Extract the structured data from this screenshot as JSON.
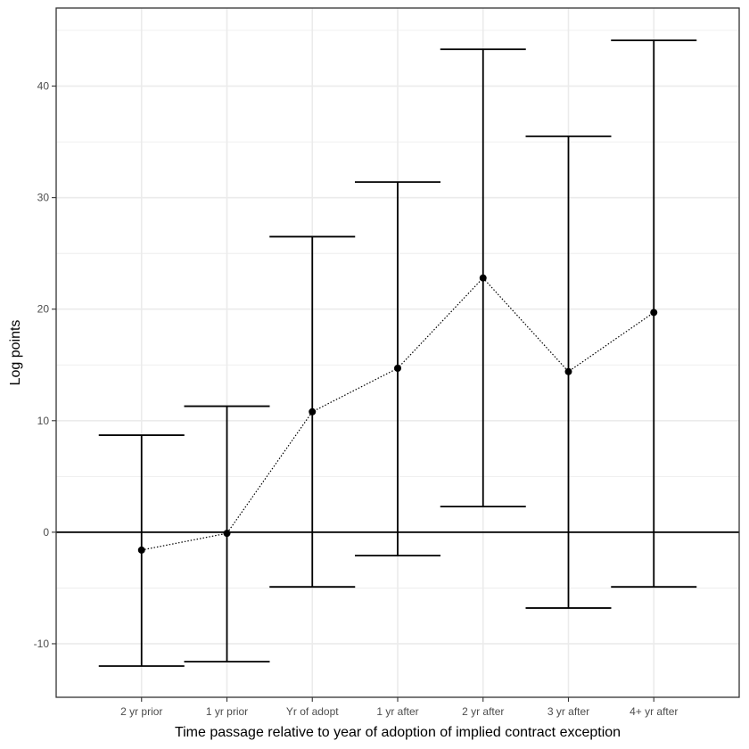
{
  "chart_data": {
    "type": "errorbar",
    "title": "",
    "xlabel": "Time passage relative to year of adoption of implied contract exception",
    "ylabel": "Log points",
    "categories": [
      "2 yr prior",
      "1 yr prior",
      "Yr of adopt",
      "1 yr after",
      "2 yr after",
      "3 yr after",
      "4+ yr after"
    ],
    "series": [
      {
        "name": "Estimate",
        "values": [
          -1.6,
          -0.1,
          10.8,
          14.7,
          22.8,
          14.4,
          19.7
        ],
        "lower": [
          -12.0,
          -11.6,
          -4.9,
          -2.1,
          2.3,
          -6.8,
          -4.9
        ],
        "upper": [
          8.7,
          11.3,
          26.5,
          31.4,
          43.3,
          35.5,
          44.1
        ]
      }
    ],
    "ylim": [
      -14.8,
      47.0
    ],
    "yticks": [
      -10,
      0,
      10,
      20,
      30,
      40
    ],
    "ytick_labels": [
      "-10",
      "0",
      "10",
      "20",
      "30",
      "40"
    ],
    "hline": 0,
    "grid": true,
    "colors": {
      "point": "#000000",
      "errorbar": "#000000",
      "connector": "#000000",
      "grid": "#ebebeb",
      "panel_border": "#333333"
    }
  }
}
